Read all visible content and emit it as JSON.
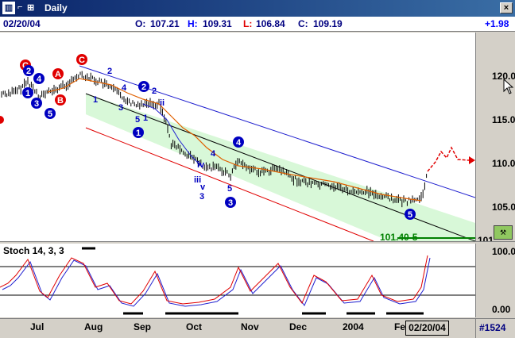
{
  "window": {
    "title": "Daily",
    "icon": "chart-app-icon",
    "close_label": "×"
  },
  "infobar": {
    "date": "02/20/04",
    "open_label": "O:",
    "open": "107.21",
    "high_label": "H:",
    "high": "109.31",
    "low_label": "L:",
    "low": "106.84",
    "close_label": "C:",
    "close": "109.19",
    "change": "+1.98"
  },
  "price_axis": {
    "ticks": [
      "120.00",
      "115.00",
      "110.00",
      "105.00",
      "101"
    ],
    "tick_values": [
      120,
      115,
      110,
      105,
      101
    ]
  },
  "stoch_axis": {
    "ticks": [
      "100.00",
      "0.00"
    ]
  },
  "stochastic": {
    "title": "Stoch 14, 3, 3"
  },
  "target_label": "101.40-5",
  "time_axis": {
    "months": [
      "Jul",
      "Aug",
      "Sep",
      "Oct",
      "Nov",
      "Dec",
      "2004",
      "Fe"
    ],
    "current_date": "02/20/04",
    "bar_count": "#1524"
  },
  "wave_labels": {
    "circled_red": [
      "C",
      "A",
      "B",
      "C"
    ],
    "circled_blue": [
      "2",
      "4",
      "1",
      "3",
      "5",
      "2",
      "1",
      "4",
      "3",
      "5"
    ],
    "plain_blue": [
      "2",
      "1",
      "4",
      "3",
      "5",
      "1",
      "2",
      "ii",
      "4",
      "iv",
      "iii",
      "v",
      "3",
      "5"
    ]
  },
  "colors": {
    "channel_fill": "#d8f8d8",
    "upper_line": "#2020d0",
    "lower_line": "#e00000",
    "ma_line": "#e06000",
    "stoch_k": "#e00000",
    "stoch_d": "#2020d0",
    "target_line": "#008000"
  }
}
